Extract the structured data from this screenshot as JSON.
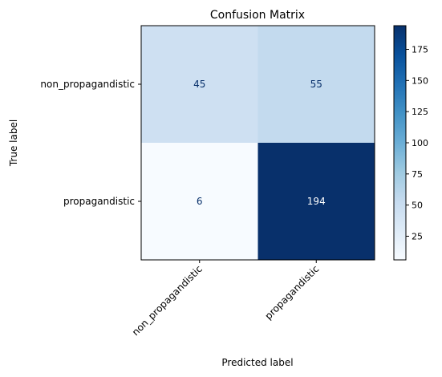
{
  "chart_data": {
    "type": "heatmap",
    "title": "Confusion Matrix",
    "xlabel": "Predicted label",
    "ylabel": "True label",
    "x_categories": [
      "non_propagandistic",
      "propagandistic"
    ],
    "y_categories": [
      "non_propagandistic",
      "propagandistic"
    ],
    "values": [
      [
        45,
        55
      ],
      [
        6,
        194
      ]
    ],
    "colormap": "Blues",
    "colorbar": {
      "range": [
        6,
        194
      ],
      "ticks": [
        25,
        50,
        75,
        100,
        125,
        150,
        175
      ],
      "tick_labels": [
        "25",
        "50",
        "75",
        "100",
        "125",
        "150",
        "175"
      ]
    },
    "text_colors": {
      "light": "#08306b",
      "dark": "#ffffff"
    },
    "grid": false,
    "x_tick_rotation": 45
  }
}
